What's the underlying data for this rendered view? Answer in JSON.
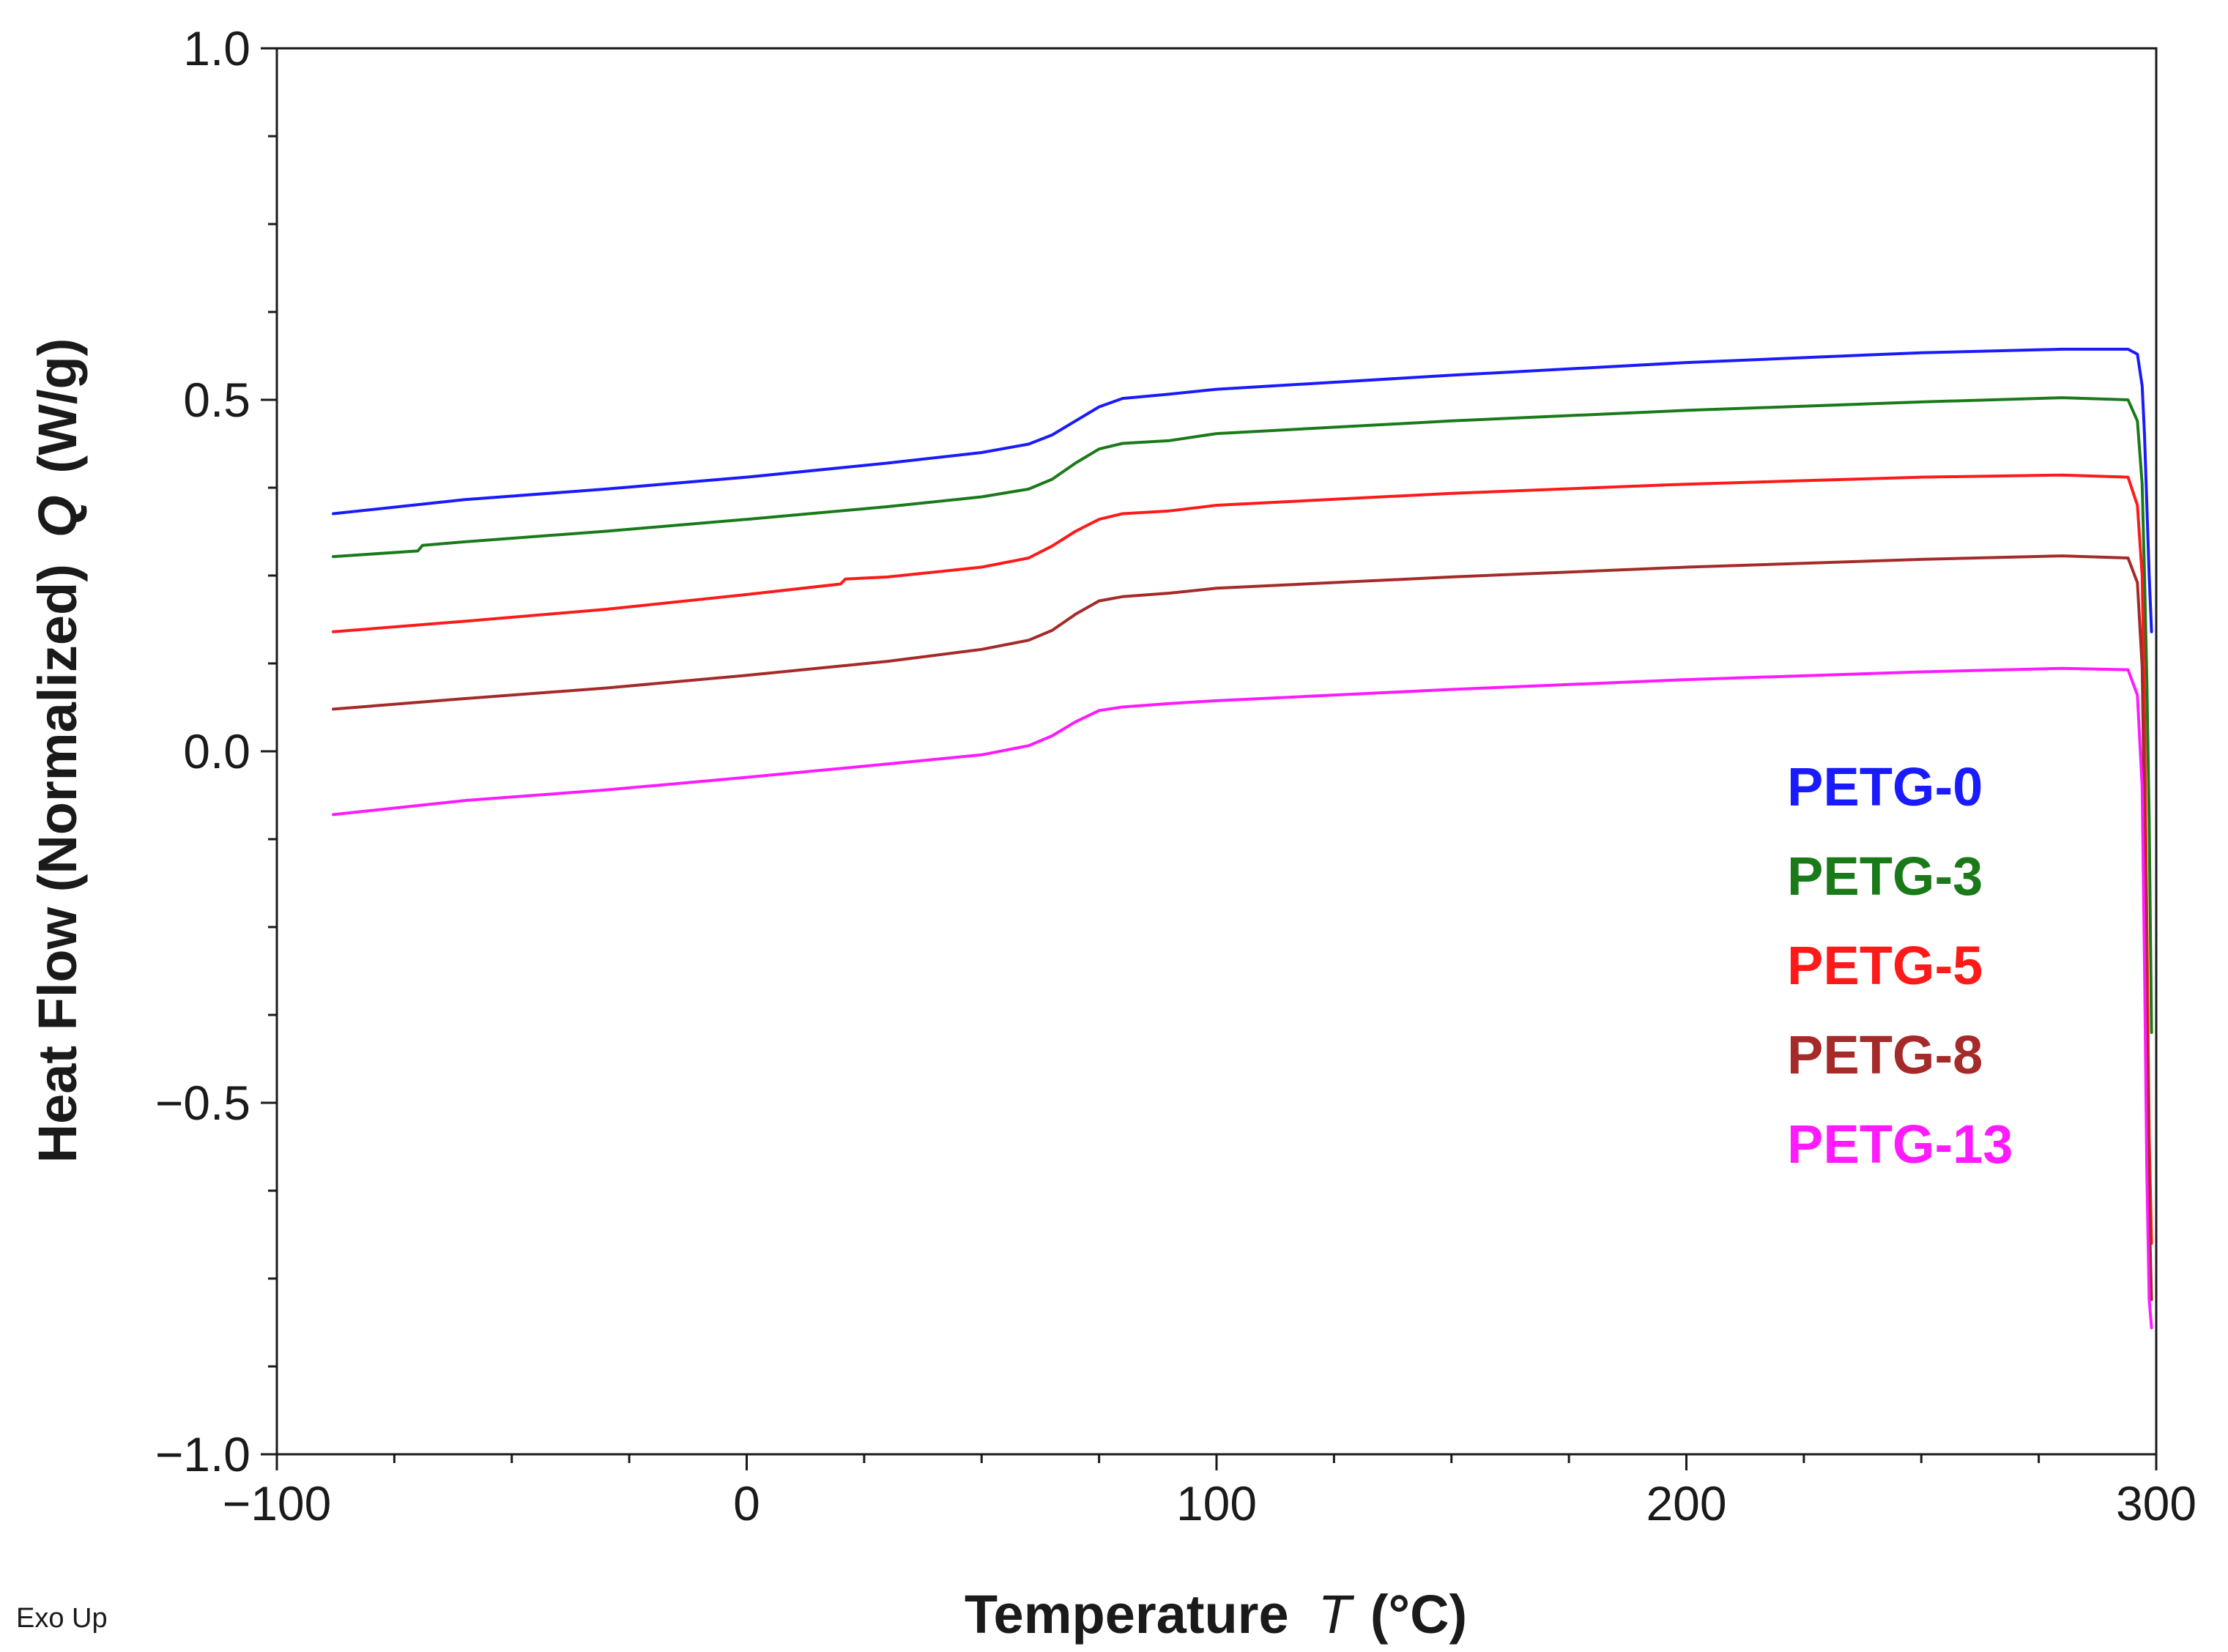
{
  "chart_data": {
    "type": "line",
    "title": "",
    "xlabel": {
      "prefix": "Temperature",
      "var": "T",
      "unit": "(°C)"
    },
    "ylabel": {
      "prefix": "Heat Flow (Normalized)",
      "var": "Q",
      "unit": "(W/g)"
    },
    "xlim": [
      -100,
      300
    ],
    "ylim": [
      -1.0,
      1.0
    ],
    "x_ticks": [
      -100,
      0,
      100,
      200,
      300
    ],
    "x_tick_labels": [
      "−100",
      "0",
      "100",
      "200",
      "300"
    ],
    "x_minor_step": 25,
    "y_ticks": [
      -1.0,
      -0.5,
      0.0,
      0.5,
      1.0
    ],
    "y_tick_labels": [
      "−1.0",
      "−0.5",
      "0.0",
      "0.5",
      "1.0"
    ],
    "y_minor_step": 0.125,
    "grid": false,
    "legend_position": "lower-right inside plot",
    "annotation": "Exo Up",
    "series": [
      {
        "name": "PETG-0",
        "color": "#1a1aff",
        "x": [
          -88,
          -60,
          -30,
          0,
          30,
          50,
          60,
          65,
          70,
          75,
          80,
          90,
          100,
          150,
          200,
          250,
          280,
          294,
          296,
          297,
          297.5,
          298,
          298.5,
          299
        ],
        "y": [
          0.338,
          0.358,
          0.373,
          0.39,
          0.41,
          0.425,
          0.437,
          0.45,
          0.47,
          0.49,
          0.502,
          0.508,
          0.515,
          0.535,
          0.553,
          0.567,
          0.572,
          0.572,
          0.565,
          0.52,
          0.45,
          0.35,
          0.25,
          0.17
        ]
      },
      {
        "name": "PETG-3",
        "color": "#1a7a1a",
        "x": [
          -88,
          -70,
          -69,
          -60,
          -30,
          0,
          30,
          50,
          60,
          65,
          70,
          75,
          80,
          90,
          100,
          150,
          200,
          250,
          280,
          294,
          296,
          297,
          297.5,
          298,
          298.5,
          299
        ],
        "y": [
          0.277,
          0.285,
          0.293,
          0.298,
          0.313,
          0.33,
          0.348,
          0.362,
          0.373,
          0.387,
          0.41,
          0.43,
          0.438,
          0.442,
          0.452,
          0.47,
          0.485,
          0.497,
          0.503,
          0.5,
          0.47,
          0.38,
          0.25,
          0.1,
          -0.1,
          -0.4
        ]
      },
      {
        "name": "PETG-5",
        "color": "#ff1a1a",
        "x": [
          -88,
          -60,
          -30,
          0,
          20,
          21,
          30,
          50,
          60,
          65,
          70,
          75,
          80,
          90,
          100,
          150,
          200,
          250,
          280,
          294,
          296,
          297,
          297.5,
          298,
          298.5,
          299
        ],
        "y": [
          0.17,
          0.185,
          0.202,
          0.223,
          0.238,
          0.245,
          0.248,
          0.262,
          0.275,
          0.292,
          0.313,
          0.33,
          0.338,
          0.342,
          0.35,
          0.367,
          0.38,
          0.39,
          0.393,
          0.39,
          0.35,
          0.25,
          0.05,
          -0.25,
          -0.55,
          -0.7
        ]
      },
      {
        "name": "PETG-8",
        "color": "#a52a2a",
        "x": [
          -88,
          -60,
          -30,
          0,
          30,
          50,
          60,
          65,
          70,
          75,
          80,
          90,
          100,
          150,
          200,
          250,
          280,
          294,
          296,
          297,
          297.5,
          298,
          298.5,
          299
        ],
        "y": [
          0.06,
          0.075,
          0.09,
          0.108,
          0.128,
          0.145,
          0.158,
          0.172,
          0.195,
          0.214,
          0.22,
          0.225,
          0.232,
          0.248,
          0.262,
          0.273,
          0.278,
          0.275,
          0.24,
          0.12,
          -0.1,
          -0.4,
          -0.65,
          -0.78
        ]
      },
      {
        "name": "PETG-13",
        "color": "#ff1aff",
        "x": [
          -88,
          -60,
          -30,
          0,
          30,
          50,
          60,
          65,
          70,
          75,
          80,
          90,
          100,
          150,
          200,
          250,
          280,
          294,
          296,
          297,
          297.5,
          298,
          298.5,
          299
        ],
        "y": [
          -0.09,
          -0.07,
          -0.055,
          -0.037,
          -0.018,
          -0.005,
          0.008,
          0.022,
          0.042,
          0.058,
          0.063,
          0.068,
          0.072,
          0.088,
          0.102,
          0.113,
          0.118,
          0.116,
          0.08,
          -0.05,
          -0.3,
          -0.6,
          -0.78,
          -0.82
        ]
      }
    ]
  }
}
